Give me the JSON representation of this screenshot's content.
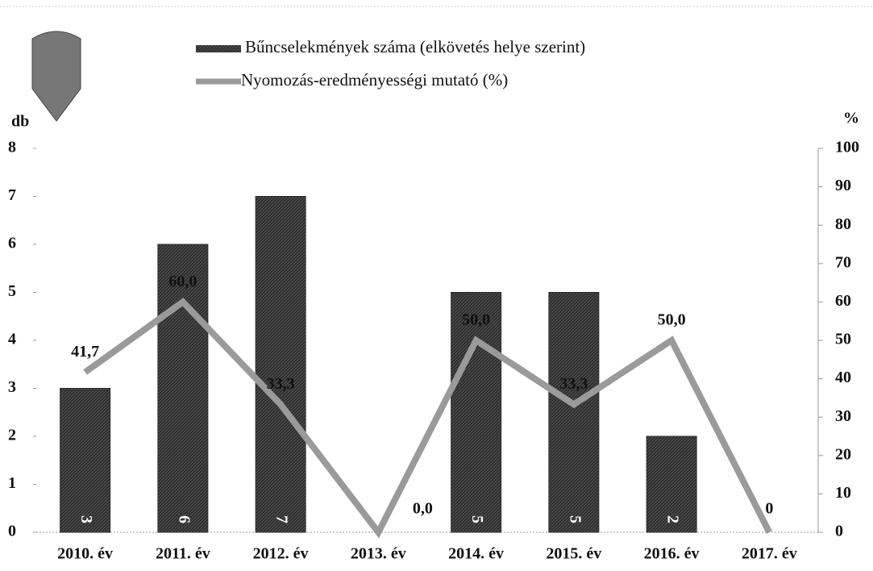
{
  "chart_data": {
    "type": "bar",
    "ylabel": "db",
    "y2label": "%",
    "categories": [
      "2010. év",
      "2011. év",
      "2012. év",
      "2013. év",
      "2014. év",
      "2015. év",
      "2016. év",
      "2017. év"
    ],
    "series": [
      {
        "name": "Bűncselekmények száma (elkövetés helye szerint)",
        "type": "bar",
        "color": "#2e2e2e",
        "values": [
          3,
          6,
          7,
          0,
          5,
          5,
          2,
          0
        ]
      },
      {
        "name": "Nyomozás-eredményességi mutató (%)",
        "type": "line",
        "axis": "y2",
        "color": "#9a9a9a",
        "values": [
          41.7,
          60.0,
          33.3,
          0.0,
          50.0,
          33.3,
          50.0,
          0
        ],
        "value_labels": [
          "41,7",
          "60,0",
          "33,3",
          "0,0",
          "50,0",
          "33,3",
          "50,0",
          "0"
        ]
      }
    ],
    "ylim": [
      0,
      8
    ],
    "yticks": [
      0,
      1,
      2,
      3,
      4,
      5,
      6,
      7,
      8
    ],
    "y2lim": [
      0,
      100
    ],
    "y2ticks": [
      0,
      10,
      20,
      30,
      40,
      50,
      60,
      70,
      80,
      90,
      100
    ]
  }
}
